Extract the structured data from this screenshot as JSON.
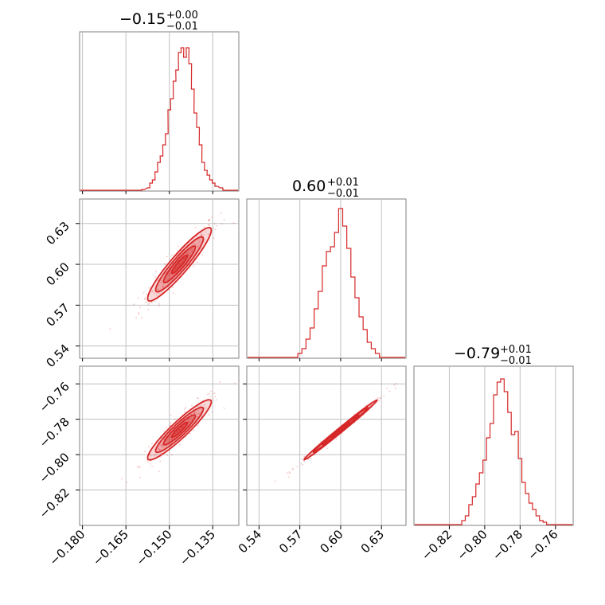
{
  "chart_data": {
    "type": "corner",
    "color": "#d62728",
    "parameters": [
      {
        "index": 0,
        "title_value": "−0.15",
        "title_plus": "+0.00",
        "title_minus": "−0.01",
        "median": -0.1465,
        "range": [
          -0.181,
          -0.126
        ],
        "ticks": [
          -0.18,
          -0.165,
          -0.15,
          -0.135
        ],
        "tick_labels": [
          "−0.180",
          "−0.165",
          "−0.150",
          "−0.135"
        ],
        "hist_x": [
          -0.159,
          -0.1572,
          -0.1563,
          -0.1554,
          -0.1545,
          -0.1536,
          -0.1527,
          -0.1518,
          -0.1509,
          -0.15,
          -0.1491,
          -0.1482,
          -0.1473,
          -0.1464,
          -0.1455,
          -0.1446,
          -0.1437,
          -0.1428,
          -0.1419,
          -0.141,
          -0.1401,
          -0.1392,
          -0.1383,
          -0.1374,
          -0.1365,
          -0.1356,
          -0.1347,
          -0.1338,
          -0.132
        ],
        "hist_y": [
          0.01,
          0.02,
          0.05,
          0.07,
          0.12,
          0.18,
          0.22,
          0.29,
          0.36,
          0.51,
          0.58,
          0.69,
          0.76,
          0.87,
          0.9,
          0.84,
          0.9,
          0.8,
          0.64,
          0.49,
          0.4,
          0.29,
          0.18,
          0.13,
          0.1,
          0.07,
          0.05,
          0.03,
          0.02
        ]
      },
      {
        "index": 1,
        "title_value": "0.60",
        "title_plus": "+0.01",
        "title_minus": "−0.01",
        "median": 0.6,
        "range": [
          0.531,
          0.648
        ],
        "ticks": [
          0.54,
          0.57,
          0.6,
          0.63
        ],
        "tick_labels": [
          "0.54",
          "0.57",
          "0.60",
          "0.63"
        ],
        "ytick_labels": [
          "0.54",
          "0.57",
          "0.60",
          "0.63"
        ],
        "hist_x": [
          0.57,
          0.573,
          0.576,
          0.579,
          0.582,
          0.585,
          0.588,
          0.591,
          0.594,
          0.597,
          0.6,
          0.603,
          0.606,
          0.609,
          0.612,
          0.615,
          0.618,
          0.621,
          0.624,
          0.627
        ],
        "hist_y": [
          0.03,
          0.06,
          0.12,
          0.19,
          0.31,
          0.42,
          0.58,
          0.67,
          0.7,
          0.79,
          0.94,
          0.83,
          0.69,
          0.51,
          0.38,
          0.26,
          0.18,
          0.1,
          0.06,
          0.03
        ]
      },
      {
        "index": 2,
        "title_value": "−0.79",
        "title_plus": "+0.01",
        "title_minus": "−0.01",
        "median": -0.786,
        "range": [
          -0.84,
          -0.75
        ],
        "ticks": [
          -0.82,
          -0.8,
          -0.78,
          -0.76
        ],
        "tick_labels": [
          "−0.82",
          "−0.80",
          "−0.78",
          "−0.76"
        ],
        "ytick_labels": [
          "−0.76",
          "−0.78",
          "−0.80",
          "−0.82"
        ],
        "hist_x": [
          -0.812,
          -0.81,
          -0.808,
          -0.806,
          -0.804,
          -0.802,
          -0.8,
          -0.798,
          -0.796,
          -0.794,
          -0.792,
          -0.79,
          -0.788,
          -0.786,
          -0.784,
          -0.782,
          -0.78,
          -0.778,
          -0.776,
          -0.774,
          -0.772,
          -0.77,
          -0.768,
          -0.766
        ],
        "hist_y": [
          0.03,
          0.06,
          0.13,
          0.18,
          0.26,
          0.33,
          0.41,
          0.55,
          0.64,
          0.82,
          0.9,
          0.92,
          0.84,
          0.71,
          0.57,
          0.59,
          0.42,
          0.27,
          0.2,
          0.14,
          0.1,
          0.06,
          0.03,
          0.02
        ]
      }
    ],
    "grid": true
  }
}
